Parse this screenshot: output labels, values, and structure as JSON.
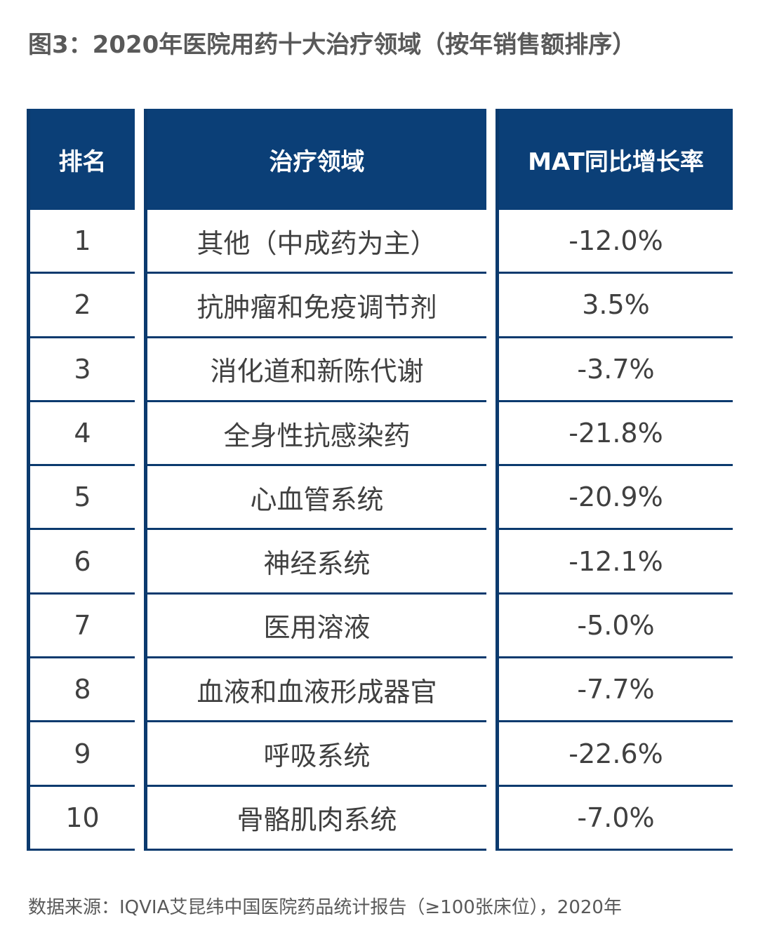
{
  "chart_data": {
    "type": "table",
    "title": "图3：2020年医院用药十大治疗领域（按年销售额排序）",
    "columns": [
      "排名",
      "治疗领域",
      "MAT同比增长率"
    ],
    "rows": [
      {
        "rank": "1",
        "area": "其他（中成药为主）",
        "rate": "-12.0%"
      },
      {
        "rank": "2",
        "area": "抗肿瘤和免疫调节剂",
        "rate": "3.5%"
      },
      {
        "rank": "3",
        "area": "消化道和新陈代谢",
        "rate": "-3.7%"
      },
      {
        "rank": "4",
        "area": "全身性抗感染药",
        "rate": "-21.8%"
      },
      {
        "rank": "5",
        "area": "心血管系统",
        "rate": "-20.9%"
      },
      {
        "rank": "6",
        "area": "神经系统",
        "rate": "-12.1%"
      },
      {
        "rank": "7",
        "area": "医用溶液",
        "rate": "-5.0%"
      },
      {
        "rank": "8",
        "area": "血液和血液形成器官",
        "rate": "-7.7%"
      },
      {
        "rank": "9",
        "area": "呼吸系统",
        "rate": "-22.6%"
      },
      {
        "rank": "10",
        "area": "骨骼肌肉系统",
        "rate": "-7.0%"
      }
    ],
    "source": "数据来源：IQVIA艾昆纬中国医院药品统计报告（≥100张床位），2020年"
  },
  "colors": {
    "header_bg": "#0b3f77",
    "rule": "#0b3a6e",
    "text": "#404040"
  }
}
